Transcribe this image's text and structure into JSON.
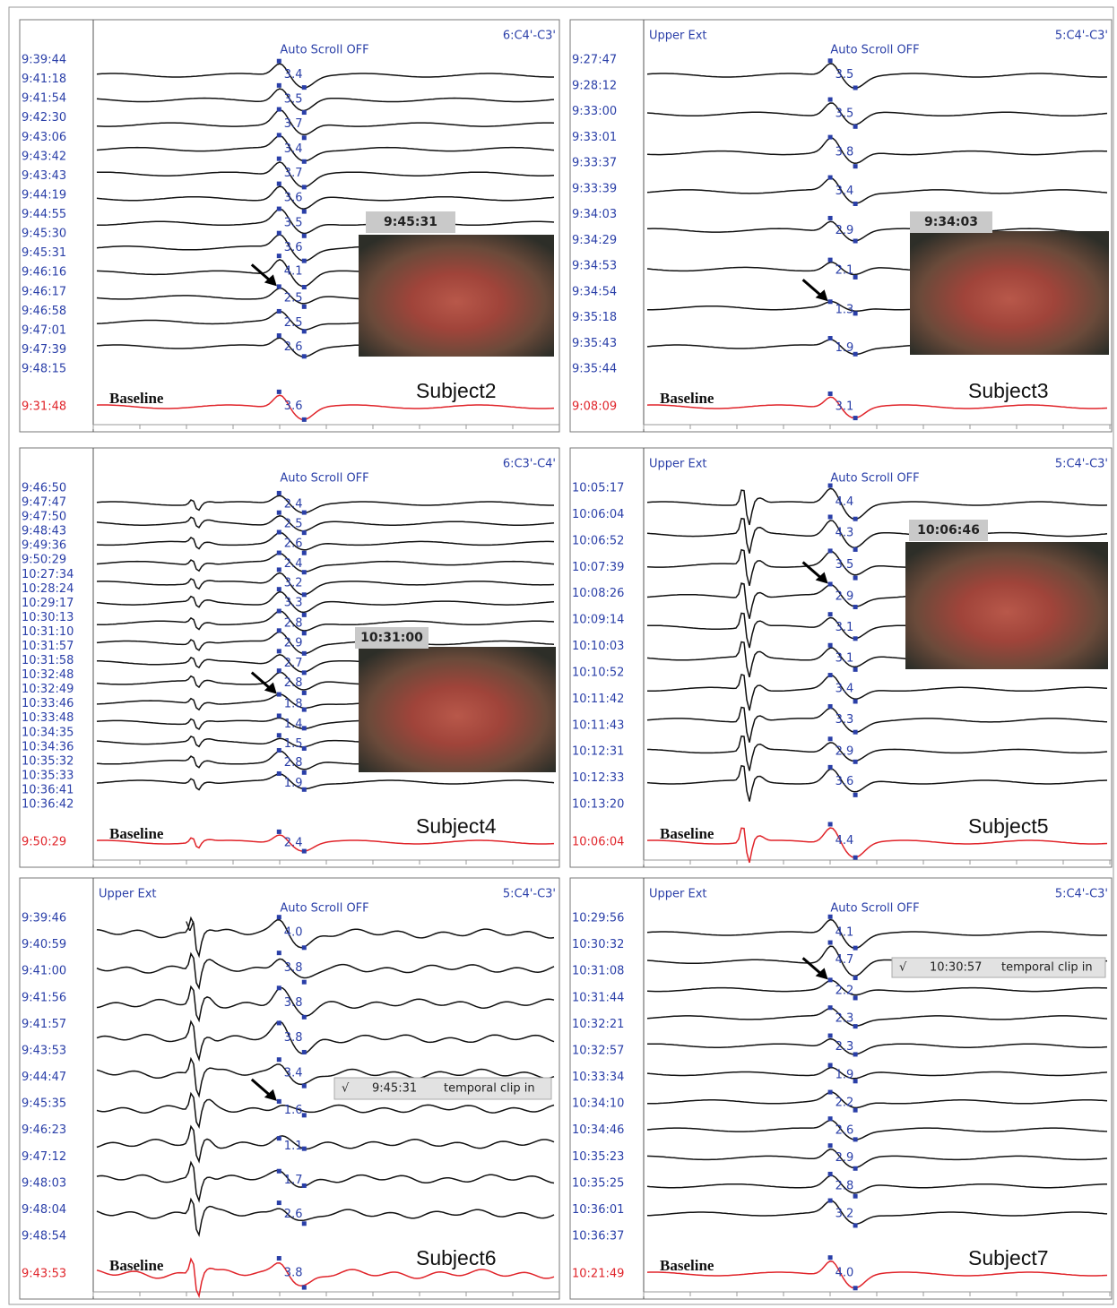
{
  "panels": [
    {
      "channel": "6:C4'-C3'",
      "scroll_status": "Auto Scroll OFF",
      "times": [
        "9:39:44",
        "9:41:18",
        "9:41:54",
        "9:42:30",
        "9:43:06",
        "9:43:42",
        "9:43:43",
        "9:44:19",
        "9:44:55",
        "9:45:30",
        "9:45:31",
        "9:46:16",
        "9:46:17",
        "9:46:58",
        "9:47:01",
        "9:47:39",
        "9:48:15"
      ],
      "amplitudes": [
        "3.4",
        "3.5",
        "3.7",
        "3.4",
        "3.7",
        "3.6",
        "3.5",
        "3.6",
        "4.1",
        "2.5",
        "2.5",
        "2.6"
      ],
      "baseline": {
        "label": "Baseline",
        "time": "9:31:48",
        "amplitude": "3.6"
      },
      "photo_time": "9:45:31",
      "subject": "Subject2"
    },
    {
      "upper_ext": "Upper Ext",
      "channel": "5:C4'-C3'",
      "scroll_status": "Auto Scroll OFF",
      "times": [
        "9:27:47",
        "9:28:12",
        "9:33:00",
        "9:33:01",
        "9:33:37",
        "9:33:39",
        "9:34:03",
        "9:34:29",
        "9:34:53",
        "9:34:54",
        "9:35:18",
        "9:35:43",
        "9:35:44"
      ],
      "amplitudes": [
        "3.5",
        "3.5",
        "3.8",
        "3.4",
        "2.9",
        "2.1",
        "1.3",
        "1.9"
      ],
      "baseline": {
        "label": "Baseline",
        "time": "9:08:09",
        "amplitude": "3.1"
      },
      "photo_time": "9:34:03",
      "subject": "Subject3"
    },
    {
      "channel": "6:C3'-C4'",
      "scroll_status": "Auto Scroll OFF",
      "times": [
        "9:46:50",
        "9:47:47",
        "9:47:50",
        "9:48:43",
        "9:49:36",
        "9:50:29",
        "10:27:34",
        "10:28:24",
        "10:29:17",
        "10:30:13",
        "10:31:10",
        "10:31:57",
        "10:31:58",
        "10:32:48",
        "10:32:49",
        "10:33:46",
        "10:33:48",
        "10:34:35",
        "10:34:36",
        "10:35:32",
        "10:35:33",
        "10:36:41",
        "10:36:42"
      ],
      "amplitudes": [
        "2.4",
        "2.5",
        "2.6",
        "2.4",
        "3.2",
        "3.3",
        "2.8",
        "2.9",
        "2.7",
        "2.8",
        "1.8",
        "1.4",
        "1.5",
        "2.8",
        "1.9"
      ],
      "baseline": {
        "label": "Baseline",
        "time": "9:50:29",
        "amplitude": "2.4"
      },
      "photo_time": "10:31:00",
      "subject": "Subject4"
    },
    {
      "upper_ext": "Upper Ext",
      "channel": "5:C4'-C3'",
      "scroll_status": "Auto Scroll OFF",
      "times": [
        "10:05:17",
        "10:06:04",
        "10:06:52",
        "10:07:39",
        "10:08:26",
        "10:09:14",
        "10:10:03",
        "10:10:52",
        "10:11:42",
        "10:11:43",
        "10:12:31",
        "10:12:33",
        "10:13:20"
      ],
      "amplitudes": [
        "4.4",
        "4.3",
        "3.5",
        "2.9",
        "3.1",
        "3.1",
        "3.4",
        "3.3",
        "2.9",
        "3.6"
      ],
      "baseline": {
        "label": "Baseline",
        "time": "10:06:04",
        "amplitude": "4.4"
      },
      "photo_time": "10:06:46",
      "subject": "Subject5"
    },
    {
      "upper_ext": "Upper Ext",
      "channel": "5:C4'-C3'",
      "scroll_status": "Auto Scroll OFF",
      "marker": "V",
      "times": [
        "9:39:46",
        "9:40:59",
        "9:41:00",
        "9:41:56",
        "9:41:57",
        "9:43:53",
        "9:44:47",
        "9:45:35",
        "9:46:23",
        "9:47:12",
        "9:48:03",
        "9:48:04",
        "9:48:54"
      ],
      "amplitudes": [
        "4.0",
        "3.8",
        "3.8",
        "3.8",
        "3.4",
        "1.6",
        "1.1",
        "1.7",
        "2.6"
      ],
      "baseline": {
        "label": "Baseline",
        "time": "9:43:53",
        "amplitude": "3.8"
      },
      "note": {
        "check": "√",
        "time": "9:45:31",
        "text": "temporal clip in"
      },
      "subject": "Subject6"
    },
    {
      "upper_ext": "Upper Ext",
      "channel": "5:C4'-C3'",
      "scroll_status": "Auto Scroll OFF",
      "times": [
        "10:29:56",
        "10:30:32",
        "10:31:08",
        "10:31:44",
        "10:32:21",
        "10:32:57",
        "10:33:34",
        "10:34:10",
        "10:34:46",
        "10:35:23",
        "10:35:25",
        "10:36:01",
        "10:36:37"
      ],
      "amplitudes": [
        "4.1",
        "4.7",
        "2.2",
        "2.3",
        "2.3",
        "1.9",
        "2.2",
        "2.6",
        "2.9",
        "2.8",
        "3.2"
      ],
      "baseline": {
        "label": "Baseline",
        "time": "10:21:49",
        "amplitude": "4.0"
      },
      "note": {
        "check": "√",
        "time": "10:30:57",
        "text": "temporal clip in"
      },
      "subject": "Subject7"
    }
  ]
}
